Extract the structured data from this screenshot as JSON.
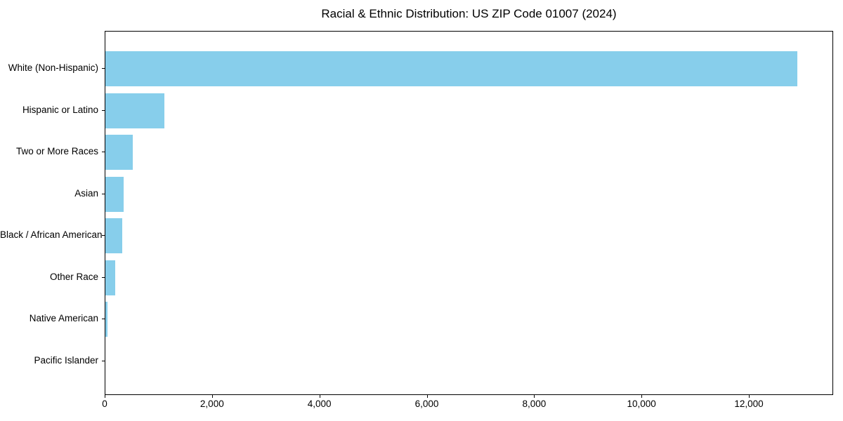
{
  "chart_data": {
    "type": "bar",
    "orientation": "horizontal",
    "title": "Racial & Ethnic Distribution: US ZIP Code 01007 (2024)",
    "categories": [
      "White (Non-Hispanic)",
      "Hispanic or Latino",
      "Two or More Races",
      "Asian",
      "Black / African American",
      "Other Race",
      "Native American",
      "Pacific Islander"
    ],
    "values": [
      12920,
      1100,
      515,
      340,
      310,
      190,
      35,
      0
    ],
    "xlabel": "",
    "ylabel": "",
    "xlim": [
      0,
      13570
    ],
    "xticks": [
      0,
      2000,
      4000,
      6000,
      8000,
      10000,
      12000
    ],
    "xtick_labels": [
      "0",
      "2,000",
      "4,000",
      "6,000",
      "8,000",
      "10,000",
      "12,000"
    ],
    "bar_color": "#87CEEB",
    "axis_color": "#000000",
    "text_color": "#000000",
    "background_color": "#ffffff",
    "grid": false,
    "legend": null
  }
}
